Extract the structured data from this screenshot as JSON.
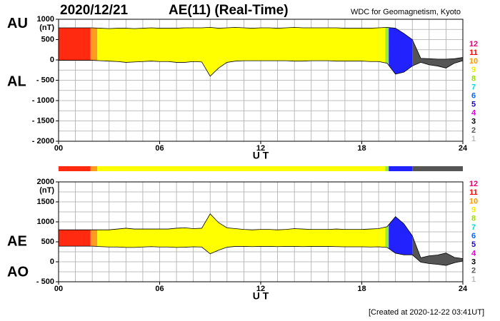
{
  "header": {
    "date": "2020/12/21",
    "title": "AE(11) (Real-Time)",
    "source": "WDC for Geomagnetism, Kyoto",
    "footer": "[Created at 2020-12-22 03:41UT]"
  },
  "chart_data": [
    {
      "type": "area",
      "upper_label": "AU",
      "lower_label": "AL",
      "unit": "(nT)",
      "xlabel": "U T",
      "x": [
        0,
        0.5,
        1,
        1.5,
        2,
        2.5,
        3,
        3.5,
        4,
        4.5,
        5,
        5.5,
        6,
        6.5,
        7,
        7.5,
        8,
        8.5,
        9,
        9.5,
        10,
        10.5,
        11,
        11.5,
        12,
        12.5,
        13,
        13.5,
        14,
        14.5,
        15,
        15.5,
        16,
        16.5,
        17,
        17.5,
        18,
        18.5,
        19,
        19.5,
        20,
        20.5,
        21,
        21.5,
        22,
        22.5,
        23,
        23.5,
        24
      ],
      "series": [
        {
          "name": "AU",
          "color": "#000000",
          "values": [
            790,
            790,
            790,
            790,
            790,
            780,
            770,
            780,
            780,
            770,
            780,
            790,
            780,
            780,
            780,
            790,
            790,
            790,
            800,
            780,
            790,
            800,
            790,
            780,
            790,
            790,
            780,
            790,
            800,
            790,
            790,
            790,
            790,
            790,
            780,
            780,
            780,
            780,
            790,
            800,
            780,
            650,
            500,
            40,
            30,
            20,
            20,
            30,
            60
          ]
        },
        {
          "name": "AL",
          "color": "#000000",
          "values": [
            -10,
            -10,
            -10,
            -10,
            -10,
            -20,
            -30,
            -40,
            -60,
            -50,
            -40,
            -30,
            -40,
            -40,
            -60,
            -60,
            -40,
            -50,
            -400,
            -200,
            -60,
            -30,
            -20,
            -20,
            -20,
            -20,
            -20,
            -20,
            -30,
            -30,
            -20,
            -20,
            -20,
            -30,
            -30,
            -30,
            -30,
            -40,
            -40,
            -80,
            -350,
            -300,
            -150,
            -60,
            -120,
            -150,
            -200,
            -80,
            -20
          ]
        }
      ],
      "bands": [
        {
          "start": 0,
          "end": 1.9,
          "color": "#ff2a10"
        },
        {
          "start": 1.9,
          "end": 2.3,
          "color": "#ff9a20"
        },
        {
          "start": 2.3,
          "end": 19.4,
          "color": "#ffff00"
        },
        {
          "start": 19.4,
          "end": 19.6,
          "color": "#99ee33"
        },
        {
          "start": 19.6,
          "end": 21,
          "color": "#2222ff"
        },
        {
          "start": 21,
          "end": 24,
          "color": "#555555"
        }
      ],
      "xlim": [
        0,
        24
      ],
      "xticks": [
        {
          "value": 0,
          "label": "00"
        },
        {
          "value": 6,
          "label": "06"
        },
        12,
        18,
        24
      ],
      "xgrid": [
        0,
        1,
        2,
        3,
        4,
        5,
        6,
        7,
        8,
        9,
        10,
        11,
        12,
        13,
        14,
        15,
        16,
        17,
        18,
        19,
        20,
        21,
        22,
        23,
        24
      ],
      "ylim": [
        -2000,
        1000
      ],
      "yticks": [
        1000,
        500,
        0,
        {
          "value": -500,
          "label": "- 500"
        },
        {
          "value": -1000,
          "label": "- 1000"
        },
        {
          "value": -1500,
          "label": "- 1500"
        },
        {
          "value": -2000,
          "label": "- 2000"
        }
      ],
      "ygrid": [
        1000,
        750,
        500,
        250,
        0,
        -250,
        -500,
        -750,
        -1000,
        -1250,
        -1500,
        -1750,
        -2000
      ],
      "legend": [
        {
          "label": "12",
          "color": "#e8006f"
        },
        {
          "label": "11",
          "color": "#ff0000"
        },
        {
          "label": "10",
          "color": "#ff9900"
        },
        {
          "label": "9",
          "color": "#eeee00"
        },
        {
          "label": "8",
          "color": "#99dd00"
        },
        {
          "label": "7",
          "color": "#00dddd"
        },
        {
          "label": "6",
          "color": "#0066ff"
        },
        {
          "label": "5",
          "color": "#2200bb"
        },
        {
          "label": "4",
          "color": "#dd00dd"
        },
        {
          "label": "3",
          "color": "#000000"
        },
        {
          "label": "2",
          "color": "#555555"
        },
        {
          "label": "1",
          "color": "#bbbbbb"
        }
      ]
    },
    {
      "type": "area",
      "upper_label": "AE",
      "lower_label": "AO",
      "unit": "(nT)",
      "xlabel": "U T",
      "strip": true,
      "x": [
        0,
        0.5,
        1,
        1.5,
        2,
        2.5,
        3,
        3.5,
        4,
        4.5,
        5,
        5.5,
        6,
        6.5,
        7,
        7.5,
        8,
        8.5,
        9,
        9.5,
        10,
        10.5,
        11,
        11.5,
        12,
        12.5,
        13,
        13.5,
        14,
        14.5,
        15,
        15.5,
        16,
        16.5,
        17,
        17.5,
        18,
        18.5,
        19,
        19.5,
        20,
        20.5,
        21,
        21.5,
        22,
        22.5,
        23,
        23.5,
        24
      ],
      "series": [
        {
          "name": "AE",
          "color": "#000000",
          "values": [
            800,
            800,
            800,
            800,
            800,
            800,
            800,
            820,
            840,
            820,
            820,
            820,
            820,
            820,
            840,
            850,
            830,
            840,
            1200,
            980,
            850,
            830,
            810,
            800,
            810,
            810,
            800,
            810,
            830,
            820,
            810,
            810,
            810,
            820,
            810,
            810,
            810,
            820,
            830,
            880,
            1130,
            950,
            650,
            100,
            150,
            170,
            220,
            110,
            80
          ]
        },
        {
          "name": "AO",
          "color": "#000000",
          "values": [
            390,
            390,
            390,
            390,
            390,
            380,
            370,
            370,
            360,
            360,
            370,
            380,
            370,
            370,
            360,
            365,
            375,
            370,
            200,
            290,
            365,
            385,
            385,
            380,
            385,
            385,
            380,
            385,
            385,
            380,
            385,
            385,
            385,
            380,
            375,
            375,
            375,
            370,
            375,
            360,
            215,
            175,
            175,
            -10,
            -45,
            -65,
            -90,
            -25,
            20
          ]
        }
      ],
      "bands": [
        {
          "start": 0,
          "end": 1.9,
          "color": "#ff2a10"
        },
        {
          "start": 1.9,
          "end": 2.3,
          "color": "#ff9a20"
        },
        {
          "start": 2.3,
          "end": 19.4,
          "color": "#ffff00"
        },
        {
          "start": 19.4,
          "end": 19.6,
          "color": "#99ee33"
        },
        {
          "start": 19.6,
          "end": 21,
          "color": "#2222ff"
        },
        {
          "start": 21,
          "end": 24,
          "color": "#555555"
        }
      ],
      "xlim": [
        0,
        24
      ],
      "xticks": [
        {
          "value": 0,
          "label": "00"
        },
        {
          "value": 6,
          "label": "06"
        },
        12,
        18,
        24
      ],
      "xgrid": [
        0,
        1,
        2,
        3,
        4,
        5,
        6,
        7,
        8,
        9,
        10,
        11,
        12,
        13,
        14,
        15,
        16,
        17,
        18,
        19,
        20,
        21,
        22,
        23,
        24
      ],
      "ylim": [
        -500,
        2000
      ],
      "yticks": [
        2000,
        1500,
        1000,
        500,
        0,
        {
          "value": -500,
          "label": "- 500"
        }
      ],
      "ygrid": [
        2000,
        1750,
        1500,
        1250,
        1000,
        750,
        500,
        250,
        0,
        -250,
        -500
      ],
      "legend": [
        {
          "label": "12",
          "color": "#e8006f"
        },
        {
          "label": "11",
          "color": "#ff0000"
        },
        {
          "label": "10",
          "color": "#ff9900"
        },
        {
          "label": "9",
          "color": "#eeee00"
        },
        {
          "label": "8",
          "color": "#99dd00"
        },
        {
          "label": "7",
          "color": "#00dddd"
        },
        {
          "label": "6",
          "color": "#0066ff"
        },
        {
          "label": "5",
          "color": "#2200bb"
        },
        {
          "label": "4",
          "color": "#dd00dd"
        },
        {
          "label": "3",
          "color": "#000000"
        },
        {
          "label": "2",
          "color": "#555555"
        },
        {
          "label": "1",
          "color": "#bbbbbb"
        }
      ]
    }
  ]
}
